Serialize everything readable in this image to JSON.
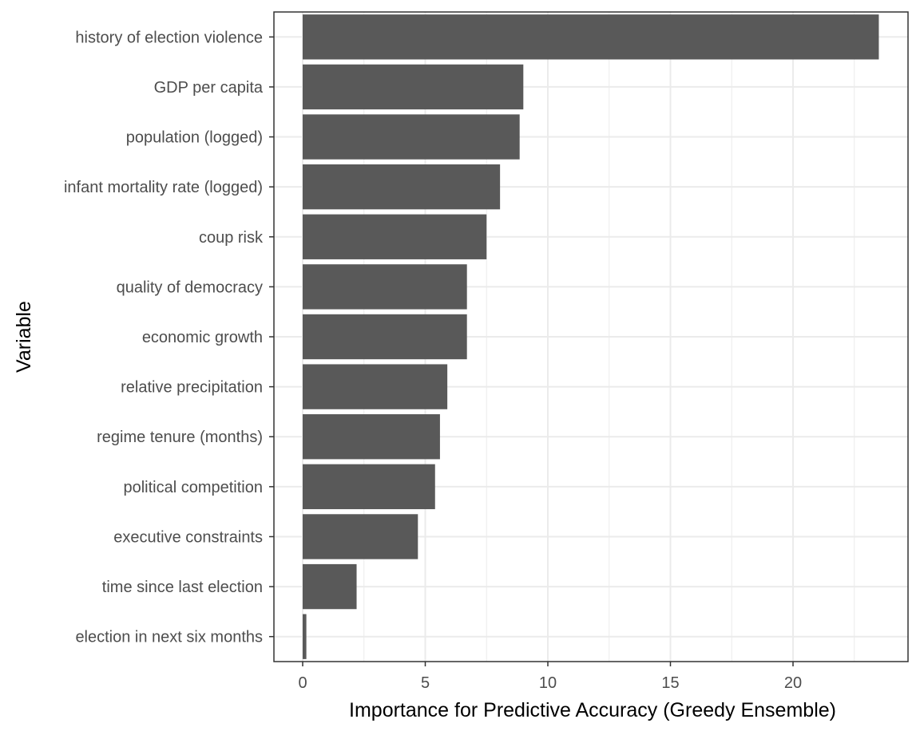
{
  "chart_data": {
    "type": "bar",
    "orientation": "horizontal",
    "title": "",
    "xlabel": "Importance for Predictive Accuracy (Greedy Ensemble)",
    "ylabel": "Variable",
    "categories": [
      "history of election violence",
      "GDP per capita",
      "population (logged)",
      "infant mortality rate (logged)",
      "coup risk",
      "quality of democracy",
      "economic growth",
      "relative precipitation",
      "regime tenure (months)",
      "political competition",
      "executive constraints",
      "time since last election",
      "election in next six months"
    ],
    "values": [
      23.5,
      9.0,
      8.85,
      8.05,
      7.5,
      6.7,
      6.7,
      5.9,
      5.6,
      5.4,
      4.7,
      2.2,
      0.15
    ],
    "xlim": [
      -1.2,
      24.6
    ],
    "xticks": [
      0,
      5,
      10,
      15,
      20
    ],
    "grid": true,
    "bar_color": "#595959",
    "grid_color": "#ebebeb",
    "panel_border_color": "#333333"
  }
}
